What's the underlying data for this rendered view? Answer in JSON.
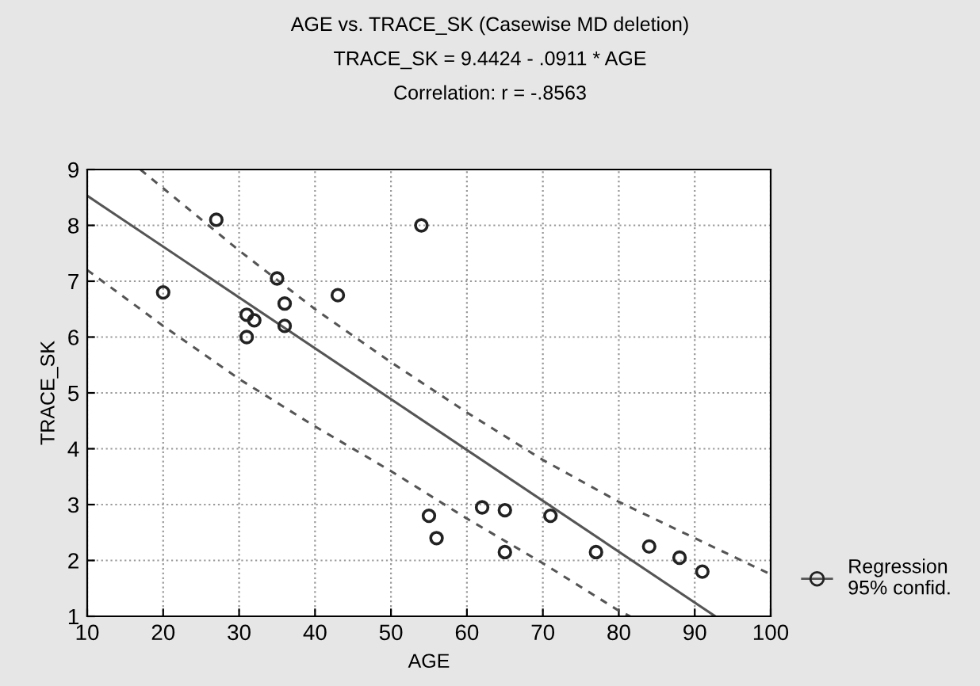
{
  "chart_data": {
    "type": "scatter",
    "title": "AGE vs. TRACE_SK (Casewise MD deletion)",
    "subtitle": "TRACE_SK = 9.4424 - .0911 * AGE",
    "annotations": [
      "Correlation: r = -.8563"
    ],
    "xlabel": "AGE",
    "ylabel": "TRACE_SK",
    "xlim": [
      10,
      100
    ],
    "ylim": [
      1,
      9
    ],
    "xticks": [
      10,
      20,
      30,
      40,
      50,
      60,
      70,
      80,
      90,
      100
    ],
    "yticks": [
      1,
      2,
      3,
      4,
      5,
      6,
      7,
      8,
      9
    ],
    "grid": true,
    "legend": "bottom right",
    "series": [
      {
        "marker": "circle",
        "color": "#222222",
        "x": [
          20,
          27,
          31,
          32,
          31,
          35,
          36,
          36,
          43,
          54,
          55,
          56,
          62,
          65,
          65,
          71,
          77,
          84,
          88,
          91
        ],
        "values": [
          6.8,
          8.1,
          6.4,
          6.3,
          6.0,
          7.05,
          6.6,
          6.2,
          6.75,
          8.0,
          2.8,
          2.4,
          2.95,
          2.9,
          2.15,
          2.8,
          2.15,
          2.25,
          2.05,
          1.8
        ]
      },
      {
        "type": "line",
        "name": "Regression\n95% confid.",
        "color": "#555555",
        "line_style": "solid",
        "x": [
          10,
          92.7
        ],
        "values": [
          8.53,
          1.0
        ]
      },
      {
        "type": "line",
        "color": "#555555",
        "line_style": "dashed",
        "x": [
          17,
          30,
          40,
          50,
          60,
          70,
          80,
          90,
          100
        ],
        "values": [
          9.0,
          7.55,
          6.5,
          5.55,
          4.65,
          3.8,
          3.05,
          2.4,
          1.75
        ]
      },
      {
        "type": "line",
        "color": "#555555",
        "line_style": "dashed",
        "x": [
          10,
          20,
          30,
          40,
          50,
          60,
          70,
          80,
          81.5
        ],
        "values": [
          7.2,
          6.2,
          5.25,
          4.4,
          3.6,
          2.75,
          1.95,
          1.1,
          1.0
        ]
      }
    ]
  }
}
